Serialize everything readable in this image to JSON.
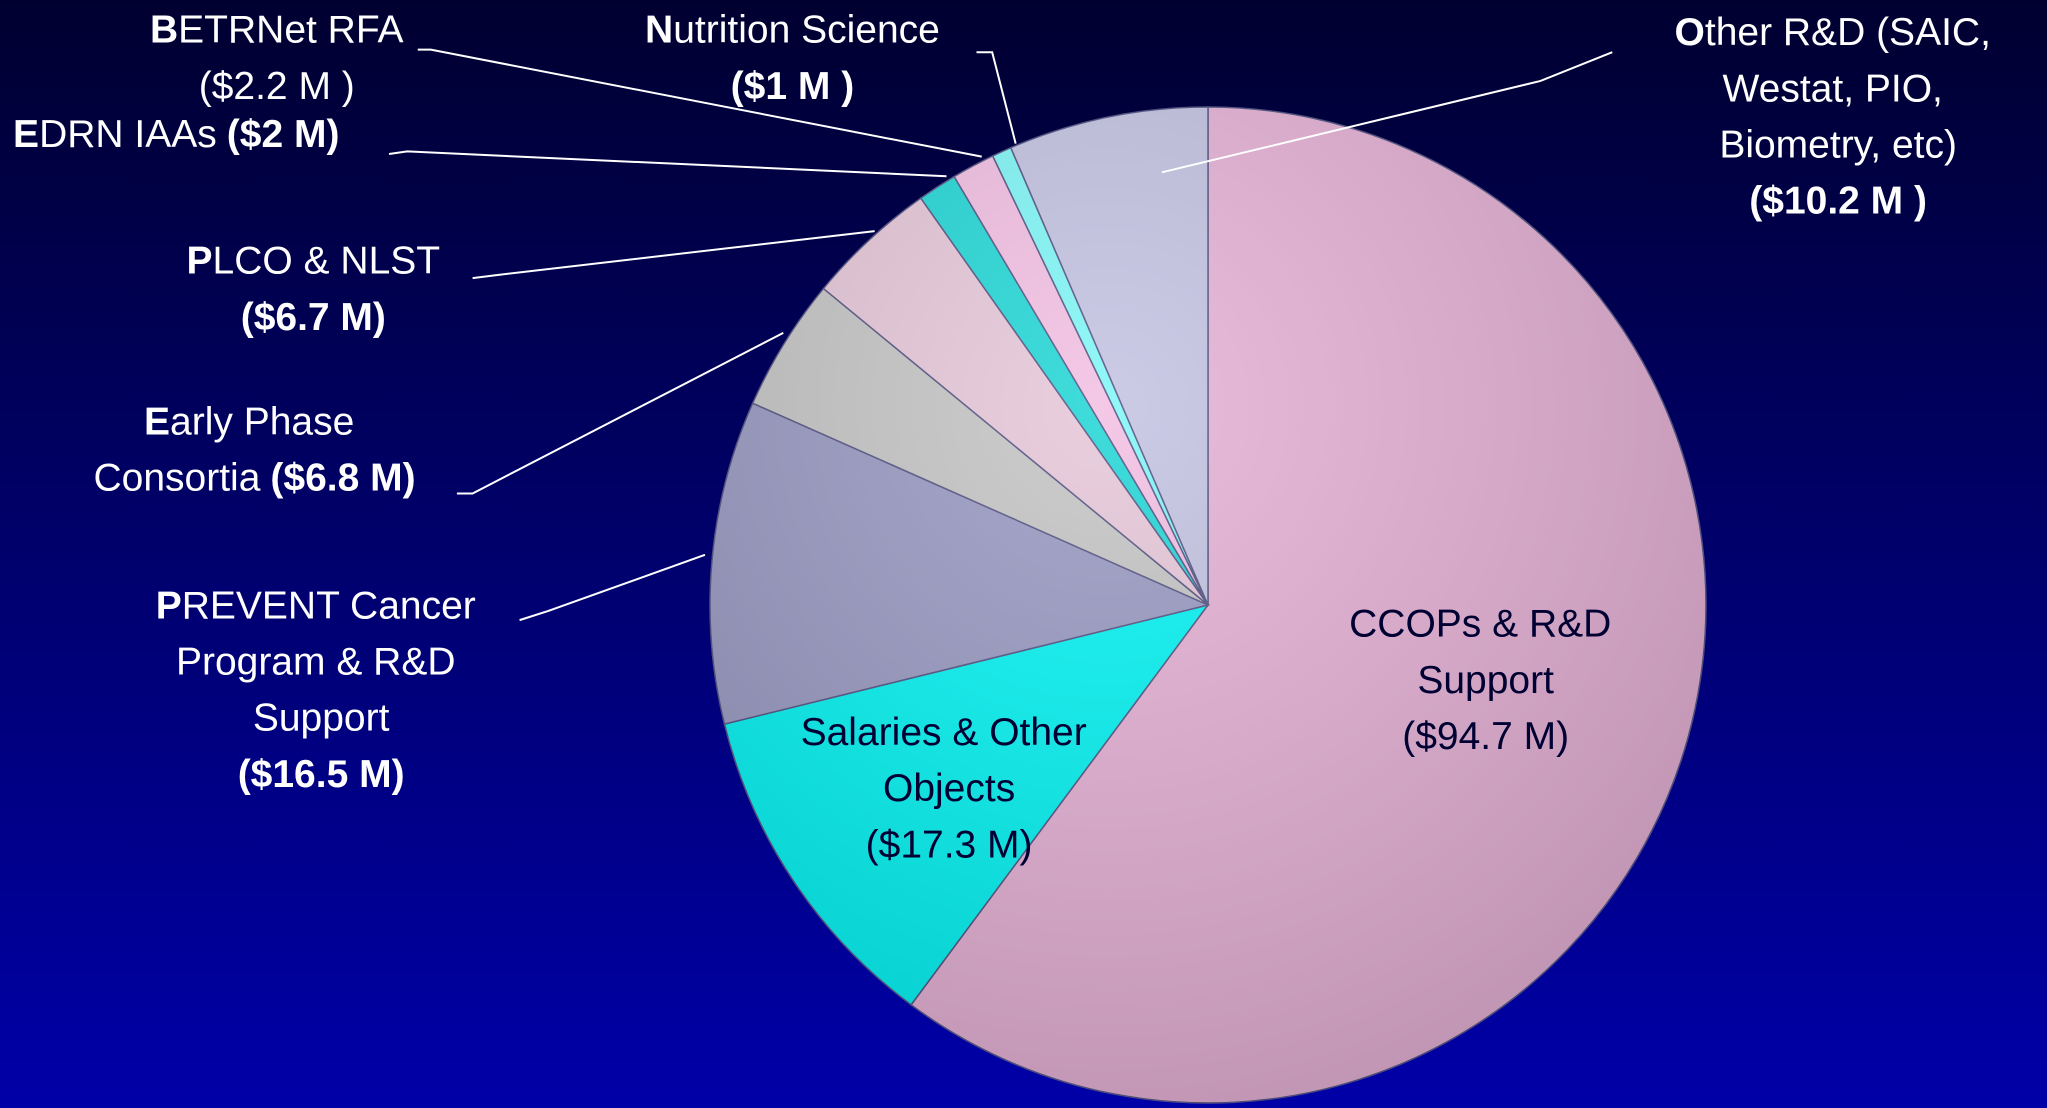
{
  "chart_data": {
    "type": "pie",
    "categories": [
      "CCOPs & R&D Support",
      "Salaries & Other Objects",
      "PREVENT Cancer Program & R&D Support",
      "Early Phase Consortia",
      "PLCO & NLST",
      "EDRN IAAs",
      "BETRNet RFA",
      "Nutrition Science",
      "Other R&D (SAIC, Westat, PIO, Biometry, etc)"
    ],
    "values": [
      94.7,
      17.3,
      16.5,
      6.8,
      6.7,
      2,
      2.2,
      1,
      10.2
    ],
    "value_labels": [
      "($94.7 M)",
      "($17.3 M)",
      "($16.5 M)",
      "($6.8 M)",
      "($6.7 M)",
      "($2 M)",
      "($2.2 M )",
      "($1 M )",
      "($10.2 M )"
    ],
    "colors": [
      "#e6b0d6",
      "#00f4f4",
      "#9898c2",
      "#c4c4c4",
      "#e6c6d8",
      "#1ed6d6",
      "#f2bee2",
      "#7ef6f6",
      "#c2c2e2"
    ]
  }
}
